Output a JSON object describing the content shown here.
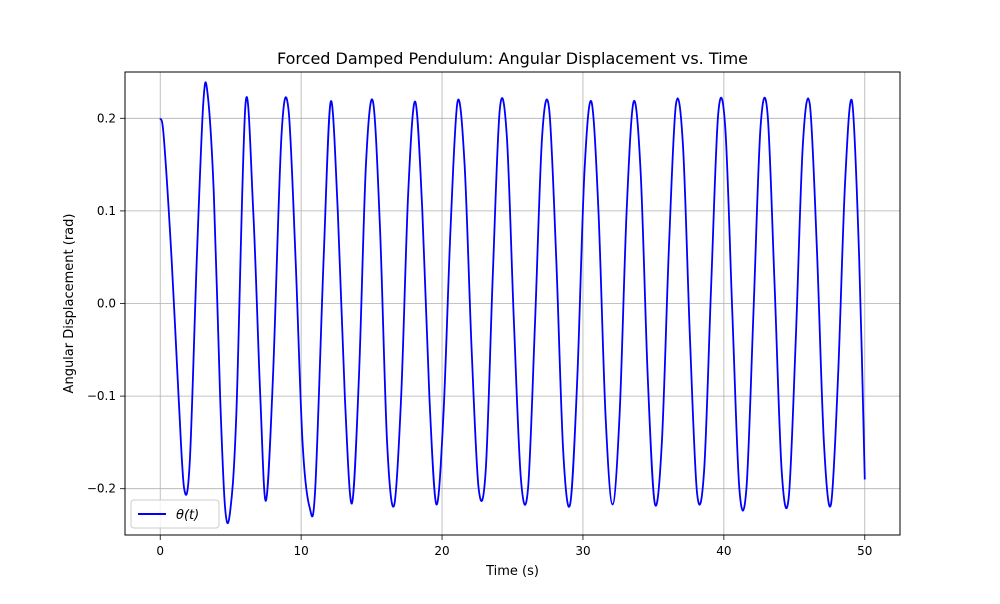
{
  "chart_data": {
    "type": "line",
    "title": "Forced Damped Pendulum: Angular Displacement vs. Time",
    "xlabel": "Time (s)",
    "ylabel": "Angular Displacement (rad)",
    "xlim": [
      -2.5,
      52.5
    ],
    "ylim": [
      -0.25,
      0.25
    ],
    "xticks": [
      0,
      10,
      20,
      30,
      40,
      50
    ],
    "xtick_labels": [
      "0",
      "10",
      "20",
      "30",
      "40",
      "50"
    ],
    "yticks": [
      -0.2,
      -0.1,
      0.0,
      0.1,
      0.2
    ],
    "ytick_labels": [
      "−0.2",
      "−0.1",
      "0.0",
      "0.1",
      "0.2"
    ],
    "grid": true,
    "legend_position": "lower-left",
    "series": [
      {
        "name": "θ(t)",
        "color": "#0000ff",
        "x": [
          0,
          0.25,
          0.8,
          1.3,
          1.7,
          2.1,
          2.6,
          3.05,
          3.35,
          3.8,
          4.25,
          4.6,
          4.95,
          5.4,
          6.05,
          6.6,
          7.1,
          7.5,
          8.0,
          8.6,
          9.1,
          9.6,
          10.1,
          10.6,
          11.0,
          11.6,
          12.1,
          12.6,
          13.1,
          13.6,
          14.1,
          14.6,
          15.1,
          15.6,
          16.1,
          16.6,
          17.1,
          17.6,
          18.1,
          18.6,
          19.1,
          19.6,
          20.1,
          20.6,
          21.1,
          21.6,
          22.1,
          22.6,
          23.1,
          23.6,
          24.1,
          24.6,
          25.1,
          25.6,
          26.1,
          26.6,
          27.1,
          27.6,
          28.1,
          28.6,
          29.1,
          29.6,
          30.1,
          30.6,
          31.1,
          31.6,
          32.1,
          32.6,
          33.1,
          33.6,
          34.1,
          34.6,
          35.1,
          35.6,
          36.1,
          36.6,
          37.1,
          37.6,
          38.1,
          38.6,
          39.1,
          39.6,
          40.1,
          40.6,
          41.1,
          41.6,
          42.1,
          42.6,
          43.1,
          43.6,
          44.1,
          44.6,
          45.1,
          45.6,
          46.1,
          46.6,
          47.1,
          47.6,
          48.1,
          48.6,
          49.1,
          49.6,
          50.0
        ],
        "y": [
          0.2,
          0.18,
          0.05,
          -0.1,
          -0.2,
          -0.17,
          0.05,
          0.215,
          0.228,
          0.12,
          -0.1,
          -0.22,
          -0.226,
          -0.12,
          0.215,
          0.1,
          -0.1,
          -0.213,
          -0.08,
          0.18,
          0.21,
          0.05,
          -0.15,
          -0.22,
          -0.2,
          0.05,
          0.218,
          0.1,
          -0.1,
          -0.216,
          -0.08,
          0.15,
          0.218,
          0.08,
          -0.15,
          -0.218,
          -0.1,
          0.12,
          0.218,
          0.1,
          -0.1,
          -0.217,
          -0.12,
          0.08,
          0.218,
          0.15,
          -0.05,
          -0.2,
          -0.18,
          0.03,
          0.21,
          0.18,
          -0.02,
          -0.19,
          -0.2,
          -0.02,
          0.18,
          0.21,
          0.05,
          -0.16,
          -0.216,
          -0.08,
          0.14,
          0.218,
          0.1,
          -0.12,
          -0.217,
          -0.12,
          0.1,
          0.218,
          0.14,
          -0.08,
          -0.216,
          -0.15,
          0.06,
          0.215,
          0.17,
          -0.04,
          -0.205,
          -0.18,
          0.02,
          0.205,
          0.19,
          -0.01,
          -0.2,
          -0.2,
          -0.01,
          0.19,
          0.205,
          0.02,
          -0.18,
          -0.21,
          -0.04,
          0.17,
          0.215,
          0.06,
          -0.15,
          -0.217,
          -0.08,
          0.13,
          0.218,
          0.05,
          -0.19
        ]
      }
    ]
  }
}
